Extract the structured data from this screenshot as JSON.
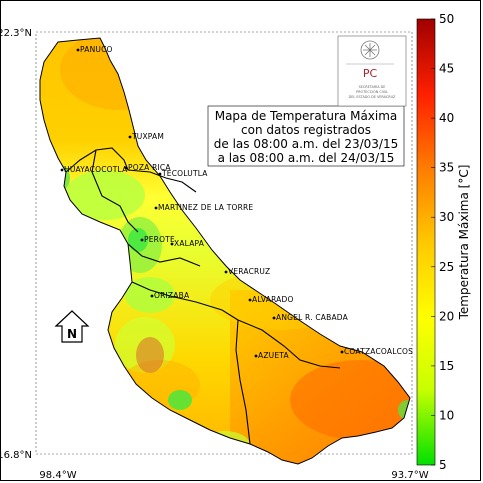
{
  "title": {
    "lines": [
      "Mapa de Temperatura Máxima",
      "con datos registrados",
      "de las 08:00 a.m. del 23/03/15",
      "a las 08:00 a.m. del 24/03/15"
    ]
  },
  "axes": {
    "lat_top": "22.3°N",
    "lat_bottom": "16.8°N",
    "lon_left": "98.4°W",
    "lon_right": "93.7°W"
  },
  "colorbar": {
    "label": "Temperatura Máxima [°C]",
    "ticks": [
      "50",
      "45",
      "40",
      "35",
      "30",
      "25",
      "20",
      "15",
      "10",
      "5"
    ],
    "min": 5,
    "max": 50,
    "colors": [
      "#00e000",
      "#c8ff00",
      "#ffff00",
      "#ffc800",
      "#ff7a00",
      "#ff2000",
      "#a00000"
    ]
  },
  "north_arrow": {
    "label": "N"
  },
  "logo": {
    "text": "PC",
    "caption": [
      "SECRETARÍA DE",
      "PROTECCIÓN CIVIL",
      "DEL ESTADO DE VERACRUZ"
    ]
  },
  "cities": [
    {
      "name": "PANUCO"
    },
    {
      "name": "TUXPAM"
    },
    {
      "name": "HUAYACOCOTLA"
    },
    {
      "name": "POZA RICA"
    },
    {
      "name": "TECOLUTLA"
    },
    {
      "name": "MARTINEZ DE LA TORRE"
    },
    {
      "name": "PEROTE"
    },
    {
      "name": "XALAPA"
    },
    {
      "name": "VERACRUZ"
    },
    {
      "name": "ORIZABA"
    },
    {
      "name": "ALVARADO"
    },
    {
      "name": "ANGEL R. CABADA"
    },
    {
      "name": "AZUETA"
    },
    {
      "name": "COATZACOALCOS"
    }
  ]
}
